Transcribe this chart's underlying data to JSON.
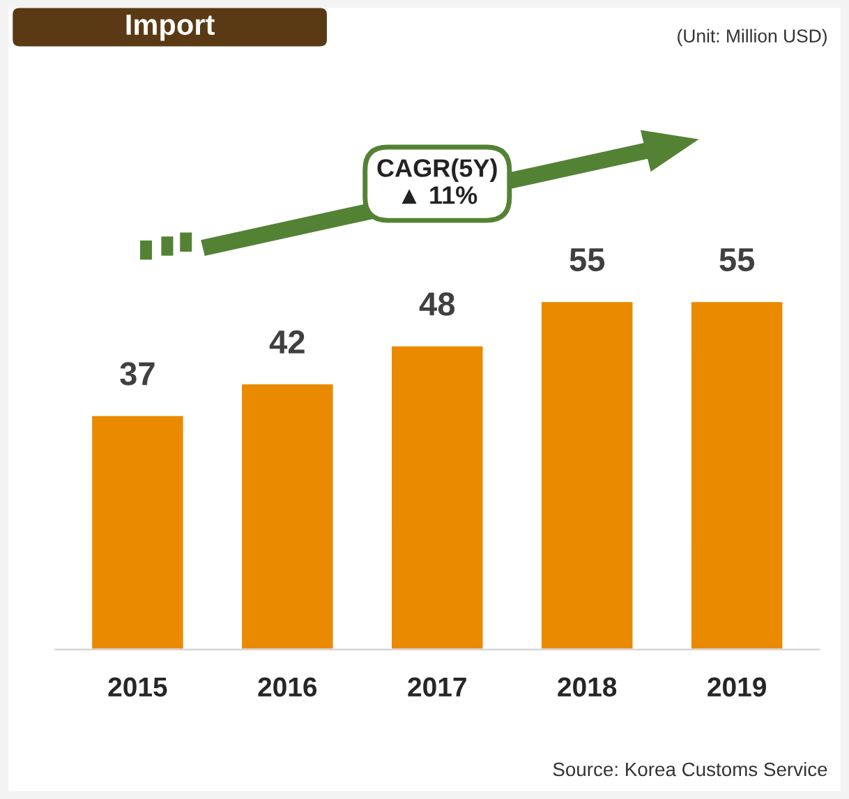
{
  "chart_data": {
    "type": "bar",
    "title": "Import",
    "categories": [
      "2015",
      "2016",
      "2017",
      "2018",
      "2019"
    ],
    "values": [
      37,
      42,
      48,
      55,
      55
    ],
    "color": "#ea8a00",
    "data_labels": true,
    "grid": false,
    "tick_labels": "x",
    "annotations": [
      "(Unit: Million USD)",
      "CAGR(5Y)\n▲ 11%",
      "Source: Korea Customs Service"
    ]
  }
}
